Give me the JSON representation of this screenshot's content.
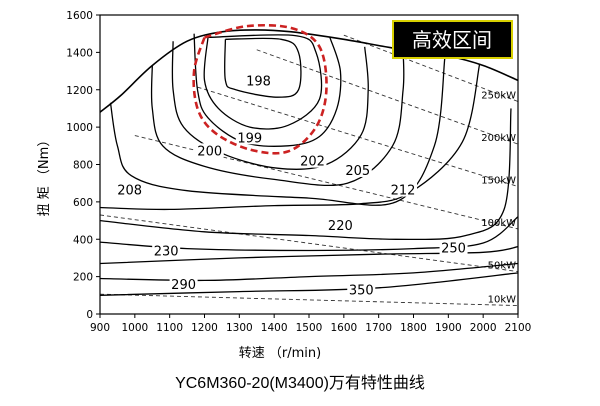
{
  "chart_data": {
    "type": "contour",
    "title": "YC6M360-20(M3400)万有特性曲线",
    "xlabel": "转速 （r/min)",
    "ylabel": "扭 矩 （Nm）",
    "xlim": [
      900,
      2100
    ],
    "ylim": [
      0,
      1600
    ],
    "xticks": [
      900,
      1000,
      1100,
      1200,
      1300,
      1400,
      1500,
      1600,
      1700,
      1800,
      1900,
      2000,
      2100
    ],
    "yticks": [
      0,
      200,
      400,
      600,
      800,
      1000,
      1200,
      1400,
      1600
    ],
    "grid": false,
    "max_torque_curve": [
      [
        900,
        1080
      ],
      [
        960,
        1170
      ],
      [
        1050,
        1330
      ],
      [
        1150,
        1460
      ],
      [
        1250,
        1510
      ],
      [
        1350,
        1520
      ],
      [
        1450,
        1510
      ],
      [
        1600,
        1470
      ],
      [
        1750,
        1420
      ],
      [
        1900,
        1380
      ],
      [
        2000,
        1330
      ],
      [
        2100,
        1250
      ]
    ],
    "fuel_consumption_contours": [
      {
        "label": "198",
        "points": [
          [
            1260,
            1470
          ],
          [
            1420,
            1470
          ],
          [
            1470,
            1400
          ],
          [
            1470,
            1200
          ],
          [
            1410,
            1160
          ],
          [
            1290,
            1200
          ],
          [
            1260,
            1250
          ],
          [
            1260,
            1470
          ]
        ]
      },
      {
        "label": "199",
        "points": [
          [
            1210,
            1480
          ],
          [
            1460,
            1490
          ],
          [
            1520,
            1400
          ],
          [
            1530,
            1150
          ],
          [
            1440,
            1010
          ],
          [
            1330,
            1000
          ],
          [
            1240,
            1100
          ],
          [
            1200,
            1250
          ],
          [
            1210,
            1480
          ]
        ]
      },
      {
        "label": "200",
        "points": [
          [
            1170,
            1500
          ],
          [
            1180,
            1200
          ],
          [
            1210,
            1050
          ],
          [
            1310,
            920
          ],
          [
            1440,
            900
          ],
          [
            1530,
            950
          ],
          [
            1580,
            1100
          ],
          [
            1590,
            1300
          ],
          [
            1560,
            1480
          ]
        ]
      },
      {
        "label": "202",
        "points": [
          [
            1110,
            1460
          ],
          [
            1110,
            1200
          ],
          [
            1140,
            1000
          ],
          [
            1250,
            860
          ],
          [
            1410,
            780
          ],
          [
            1550,
            800
          ],
          [
            1650,
            960
          ],
          [
            1670,
            1200
          ],
          [
            1660,
            1430
          ]
        ]
      },
      {
        "label": "205",
        "points": [
          [
            1050,
            1330
          ],
          [
            1050,
            1100
          ],
          [
            1080,
            900
          ],
          [
            1200,
            790
          ],
          [
            1400,
            720
          ],
          [
            1610,
            700
          ],
          [
            1740,
            900
          ],
          [
            1770,
            1200
          ],
          [
            1770,
            1410
          ]
        ]
      },
      {
        "label": "208",
        "points": [
          [
            930,
            1130
          ],
          [
            950,
            900
          ],
          [
            990,
            740
          ],
          [
            1150,
            660
          ],
          [
            1500,
            620
          ],
          [
            1750,
            600
          ],
          [
            1860,
            900
          ],
          [
            1890,
            1370
          ]
        ]
      },
      {
        "label": "212",
        "points": [
          [
            900,
            570
          ],
          [
            1100,
            560
          ],
          [
            1400,
            580
          ],
          [
            1650,
            590
          ],
          [
            1790,
            650
          ],
          [
            1940,
            920
          ],
          [
            1990,
            1340
          ]
        ]
      },
      {
        "label": "220",
        "points": [
          [
            900,
            500
          ],
          [
            1200,
            440
          ],
          [
            1500,
            420
          ],
          [
            1750,
            400
          ],
          [
            1950,
            420
          ],
          [
            2060,
            560
          ],
          [
            2080,
            1100
          ]
        ]
      },
      {
        "label": "230",
        "points": [
          [
            900,
            385
          ],
          [
            1150,
            350
          ],
          [
            1500,
            340
          ],
          [
            1800,
            350
          ],
          [
            2000,
            380
          ],
          [
            2100,
            520
          ]
        ]
      },
      {
        "label": "250",
        "points": [
          [
            900,
            270
          ],
          [
            1300,
            300
          ],
          [
            1700,
            320
          ],
          [
            2000,
            330
          ],
          [
            2100,
            360
          ]
        ]
      },
      {
        "label": "290",
        "points": [
          [
            900,
            190
          ],
          [
            1200,
            180
          ],
          [
            1500,
            200
          ],
          [
            1800,
            220
          ],
          [
            2100,
            270
          ]
        ]
      },
      {
        "label": "350",
        "points": [
          [
            900,
            100
          ],
          [
            1300,
            120
          ],
          [
            1700,
            140
          ],
          [
            2100,
            220
          ]
        ]
      }
    ],
    "power_lines": [
      {
        "label": "10kW",
        "points": [
          [
            900,
            106
          ],
          [
            2100,
            45
          ]
        ]
      },
      {
        "label": "50kW",
        "points": [
          [
            900,
            530
          ],
          [
            2100,
            227
          ]
        ]
      },
      {
        "label": "100kW",
        "points": [
          [
            1000,
            955
          ],
          [
            2100,
            455
          ]
        ]
      },
      {
        "label": "150kW",
        "points": [
          [
            1180,
            1214
          ],
          [
            2100,
            682
          ]
        ]
      },
      {
        "label": "200kW",
        "points": [
          [
            1350,
            1414
          ],
          [
            2100,
            909
          ]
        ]
      },
      {
        "label": "250kW",
        "points": [
          [
            1600,
            1492
          ],
          [
            2100,
            1137
          ]
        ]
      }
    ],
    "contour_label_positions": [
      {
        "label": "198",
        "x": 1355,
        "y": 1240
      },
      {
        "label": "199",
        "x": 1330,
        "y": 935
      },
      {
        "label": "200",
        "x": 1215,
        "y": 865
      },
      {
        "label": "202",
        "x": 1510,
        "y": 810
      },
      {
        "label": "205",
        "x": 1640,
        "y": 760
      },
      {
        "label": "208",
        "x": 985,
        "y": 655
      },
      {
        "label": "212",
        "x": 1770,
        "y": 655
      },
      {
        "label": "220",
        "x": 1590,
        "y": 465
      },
      {
        "label": "230",
        "x": 1090,
        "y": 330
      },
      {
        "label": "250",
        "x": 1915,
        "y": 345
      },
      {
        "label": "290",
        "x": 1140,
        "y": 150
      },
      {
        "label": "350",
        "x": 1650,
        "y": 120
      }
    ],
    "highlight_region": {
      "label": "高效区间",
      "points": [
        [
          1200,
          1480
        ],
        [
          1320,
          1540
        ],
        [
          1450,
          1530
        ],
        [
          1530,
          1430
        ],
        [
          1550,
          1200
        ],
        [
          1520,
          1000
        ],
        [
          1440,
          870
        ],
        [
          1330,
          880
        ],
        [
          1230,
          970
        ],
        [
          1180,
          1100
        ],
        [
          1170,
          1300
        ],
        [
          1200,
          1480
        ]
      ],
      "color": "#cc2222"
    },
    "badge_colors": {
      "background": "#000000",
      "text": "#ffffff",
      "border": "#d8d000"
    }
  }
}
